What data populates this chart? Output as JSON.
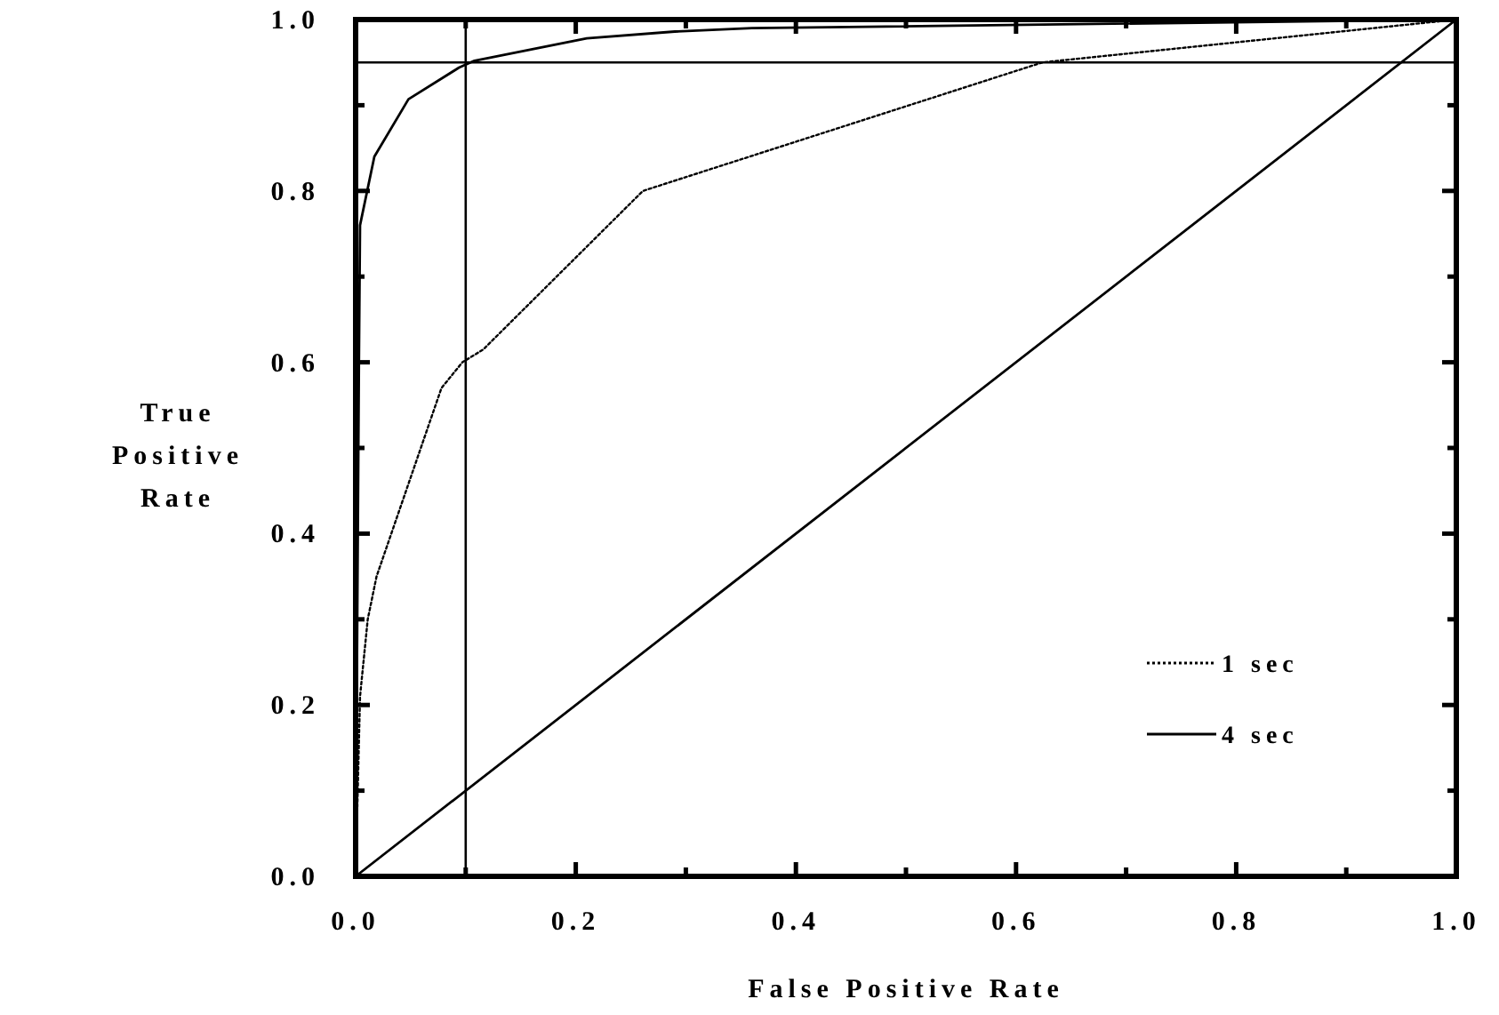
{
  "chart_data": {
    "type": "line",
    "xlabel": "False Positive Rate",
    "ylabel": "True Positive Rate",
    "xlim": [
      0,
      1
    ],
    "ylim": [
      0,
      1
    ],
    "xticks": [
      {
        "value": 0,
        "label": "0.0"
      },
      {
        "value": 0.1,
        "label": null
      },
      {
        "value": 0.2,
        "label": "0.2"
      },
      {
        "value": 0.3,
        "label": null
      },
      {
        "value": 0.4,
        "label": "0.4"
      },
      {
        "value": 0.5,
        "label": null
      },
      {
        "value": 0.6,
        "label": "0.6"
      },
      {
        "value": 0.7,
        "label": null
      },
      {
        "value": 0.8,
        "label": "0.8"
      },
      {
        "value": 0.9,
        "label": null
      },
      {
        "value": 1,
        "label": "1.0"
      }
    ],
    "yticks": [
      {
        "value": 0,
        "label": "0.0"
      },
      {
        "value": 0.1,
        "label": null
      },
      {
        "value": 0.2,
        "label": "0.2"
      },
      {
        "value": 0.3,
        "label": null
      },
      {
        "value": 0.4,
        "label": "0.4"
      },
      {
        "value": 0.5,
        "label": null
      },
      {
        "value": 0.6,
        "label": "0.6"
      },
      {
        "value": 0.7,
        "label": null
      },
      {
        "value": 0.8,
        "label": "0.8"
      },
      {
        "value": 0.9,
        "label": null
      },
      {
        "value": 1,
        "label": "1.0"
      }
    ],
    "series": [
      {
        "name": "1 sec",
        "color": "#000000",
        "line_style": "dotted",
        "x": [
          0,
          0.004,
          0.011,
          0.019,
          0.078,
          0.097,
          0.116,
          0.261,
          0.624,
          1
        ],
        "values": [
          0,
          0.21,
          0.3,
          0.35,
          0.57,
          0.6,
          0.615,
          0.8,
          0.95,
          1
        ]
      },
      {
        "name": "4 sec",
        "color": "#000000",
        "line_style": "solid",
        "x": [
          0,
          0.003,
          0.004,
          0.017,
          0.048,
          0.094,
          0.108,
          0.21,
          0.29,
          0.36,
          1
        ],
        "values": [
          0,
          0.6,
          0.76,
          0.84,
          0.907,
          0.944,
          0.952,
          0.978,
          0.986,
          0.99,
          1
        ]
      },
      {
        "color": "#000000",
        "line_style": "solid",
        "x": [
          0,
          1
        ],
        "values": [
          0,
          1
        ]
      }
    ],
    "ref_lines": [
      {
        "axis": "x",
        "value": 0.1
      },
      {
        "axis": "y",
        "value": 0.95
      }
    ],
    "legend": "bottom right",
    "grid": false,
    "marker": "none"
  }
}
